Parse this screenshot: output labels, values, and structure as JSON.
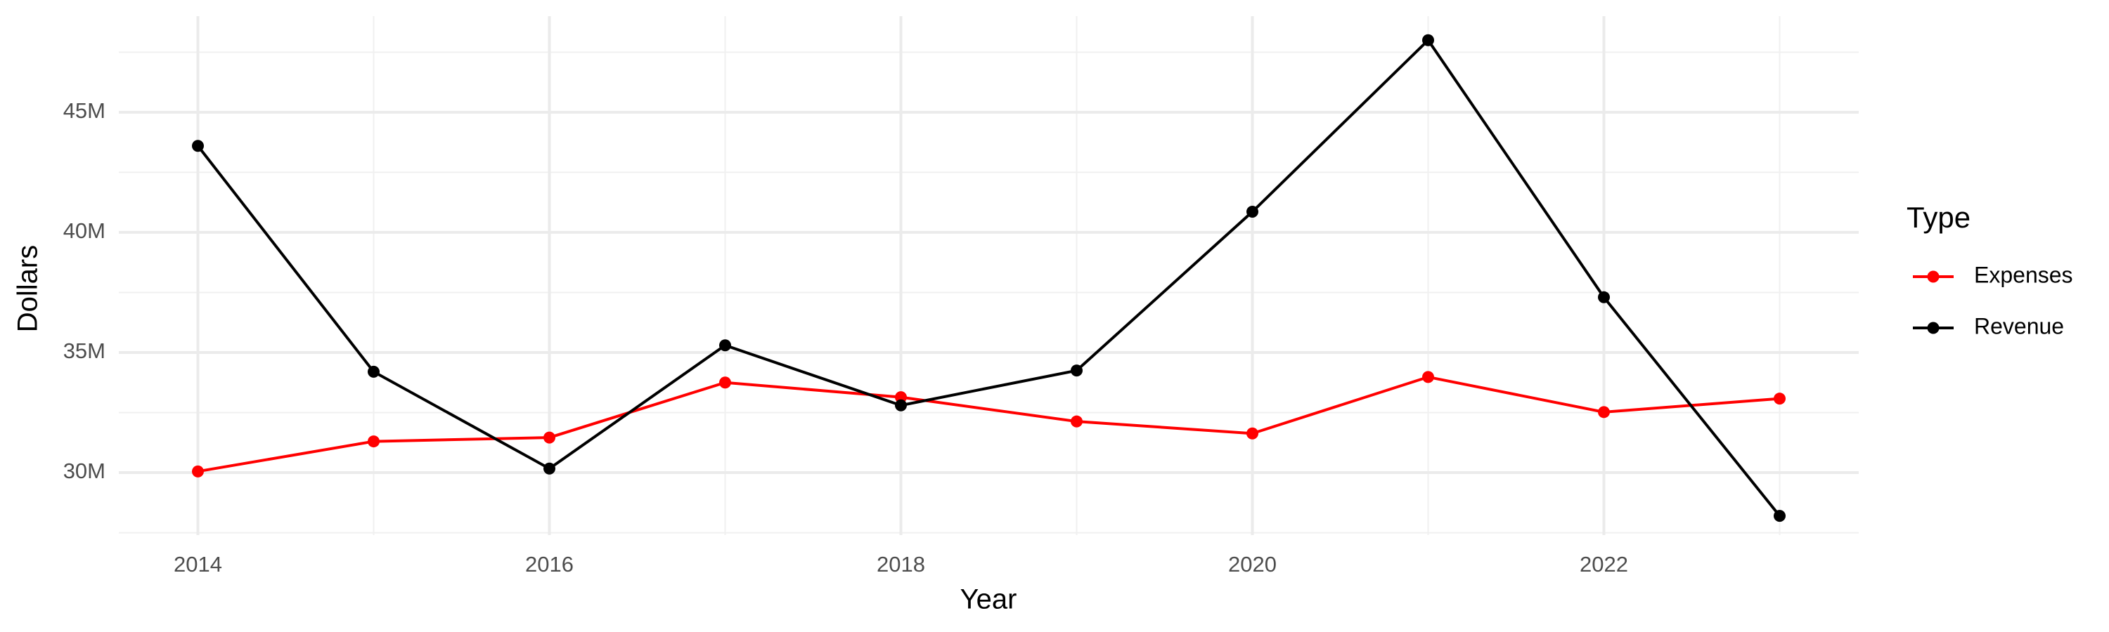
{
  "chart_data": {
    "type": "line",
    "x_label": "Year",
    "y_label": "Dollars",
    "legend_title": "Type",
    "x": [
      2014,
      2015,
      2016,
      2017,
      2018,
      2019,
      2020,
      2021,
      2022,
      2023
    ],
    "series": [
      {
        "name": "Expenses",
        "color": "#ff0000",
        "values": [
          30050000,
          31300000,
          31460000,
          33750000,
          33140000,
          32130000,
          31630000,
          33980000,
          32520000,
          33080000
        ]
      },
      {
        "name": "Revenue",
        "color": "#000000",
        "values": [
          43600000,
          34200000,
          30170000,
          35300000,
          32800000,
          34250000,
          40860000,
          48000000,
          37300000,
          28200000
        ]
      }
    ],
    "xlim": [
      2013.55,
      2023.45
    ],
    "xticks": [
      2014,
      2016,
      2018,
      2020,
      2022
    ],
    "xminor": [
      2015,
      2017,
      2019,
      2021,
      2023
    ],
    "ylim": [
      27400000,
      49000000
    ],
    "yticks": [
      {
        "value": 30000000,
        "label": "30M"
      },
      {
        "value": 35000000,
        "label": "35M"
      },
      {
        "value": 40000000,
        "label": "40M"
      },
      {
        "value": 45000000,
        "label": "45M"
      }
    ],
    "yminor": [
      27500000,
      32500000,
      37500000,
      42500000,
      47500000
    ],
    "grid": true,
    "legend": "right"
  }
}
